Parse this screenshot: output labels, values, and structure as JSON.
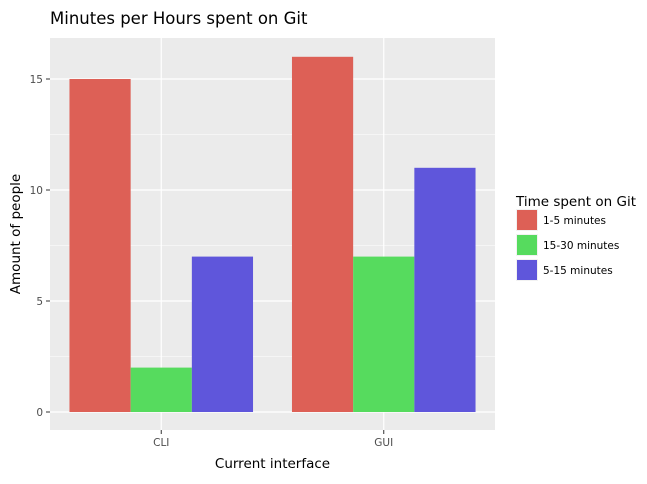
{
  "chart_data": {
    "type": "bar",
    "title": "Minutes per Hours spent on Git",
    "xlabel": "Current interface",
    "ylabel": "Amount of people",
    "categories": [
      "CLI",
      "GUI"
    ],
    "ylim": [
      0,
      16.8
    ],
    "yticks": [
      0,
      5,
      10,
      15
    ],
    "grid": true,
    "legend": {
      "title": "Time spent on Git",
      "position": "right"
    },
    "series": [
      {
        "name": "1-5 minutes",
        "color": "#dd6056",
        "values": [
          15,
          16
        ]
      },
      {
        "name": "15-30 minutes",
        "color": "#56db5e",
        "values": [
          2,
          7
        ]
      },
      {
        "name": "5-15 minutes",
        "color": "#5f56db",
        "values": [
          7,
          11
        ]
      }
    ]
  }
}
